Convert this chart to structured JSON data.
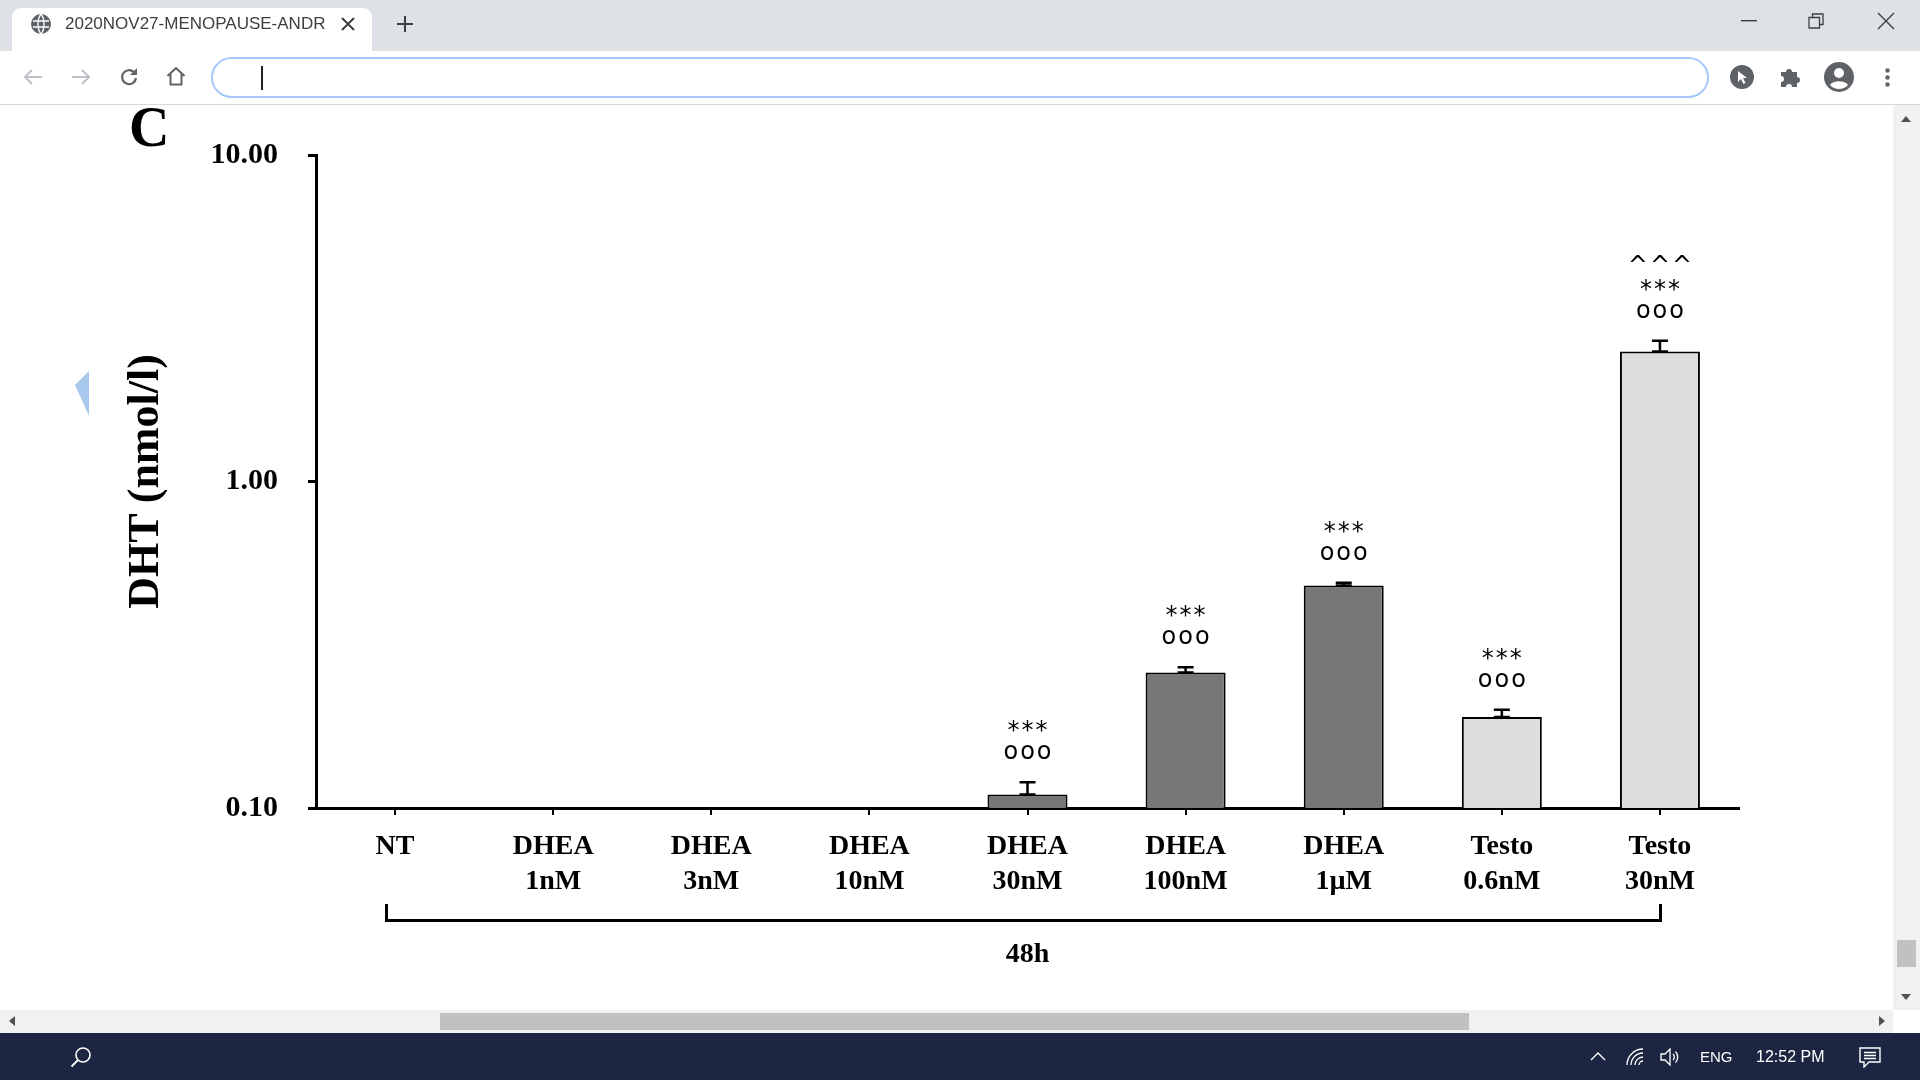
{
  "chart_data": {
    "type": "bar",
    "ylabel": "DHT (nmol/l)",
    "xlabel": "48h",
    "categories": [
      "NT",
      "DHEA 1nM",
      "DHEA 3nM",
      "DHEA 10nM",
      "DHEA 30nM",
      "DHEA 100nM",
      "DHEA 1µM",
      "Testo 0.6nM",
      "Testo 30nM"
    ],
    "values": [
      null,
      null,
      null,
      null,
      0.11,
      0.26,
      0.48,
      0.19,
      2.5
    ],
    "errors": [
      null,
      null,
      null,
      null,
      [
        0.11,
        0.12
      ],
      [
        0.26,
        0.27
      ],
      [
        0.48,
        0.49
      ],
      [
        0.19,
        0.2
      ],
      [
        2.5,
        2.7
      ]
    ],
    "colors": [
      null,
      null,
      null,
      null,
      "#777777",
      "#777777",
      "#777777",
      "#dddddd",
      "#dddddd"
    ],
    "log": true,
    "ylim": [
      0.1,
      10
    ],
    "yticks": [
      {
        "value": 0.1,
        "label": "0.10"
      },
      {
        "value": 1,
        "label": "1.00"
      },
      {
        "value": 10,
        "label": "10.00"
      }
    ],
    "annotations": [
      "***",
      "ooo",
      "***",
      "ooo",
      "***",
      "ooo",
      "***",
      "ooo",
      "^^^",
      "***",
      "ooo",
      "C",
      "2020NOV27-MENOPAUSE-ANDR",
      "ENG",
      "12:52 PM"
    ]
  }
}
